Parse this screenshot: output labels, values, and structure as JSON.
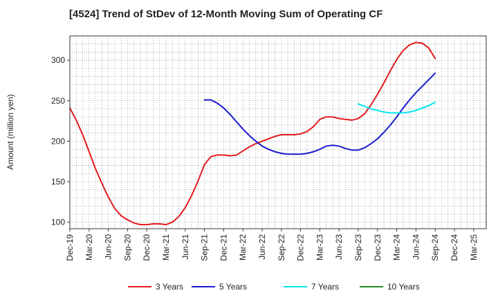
{
  "chart_data": {
    "type": "line",
    "title": "[4524]  Trend of StDev of 12-Month Moving Sum of Operating CF",
    "xlabel": "",
    "ylabel": "Amount (million yen)",
    "ylim": [
      92,
      330
    ],
    "yticks": [
      100,
      150,
      200,
      250,
      300
    ],
    "x_tick_labels": [
      "Dec-19",
      "Mar-20",
      "Jun-20",
      "Sep-20",
      "Dec-20",
      "Mar-21",
      "Jun-21",
      "Sep-21",
      "Dec-21",
      "Mar-22",
      "Jun-22",
      "Sep-22",
      "Dec-22",
      "Mar-23",
      "Jun-23",
      "Sep-23",
      "Dec-23",
      "Mar-24",
      "Jun-24",
      "Sep-24",
      "Dec-24",
      "Mar-25"
    ],
    "grid": true,
    "legend_position": "bottom",
    "series": [
      {
        "name": "3 Years",
        "color": "#e31a1c",
        "x": [
          "2019-12",
          "2020-01",
          "2020-02",
          "2020-03",
          "2020-04",
          "2020-05",
          "2020-06",
          "2020-07",
          "2020-08",
          "2020-09",
          "2020-10",
          "2020-11",
          "2020-12",
          "2021-01",
          "2021-02",
          "2021-03",
          "2021-04",
          "2021-05",
          "2021-06",
          "2021-07",
          "2021-08",
          "2021-09",
          "2021-10",
          "2021-11",
          "2021-12",
          "2022-01",
          "2022-02",
          "2022-03",
          "2022-04",
          "2022-05",
          "2022-06",
          "2022-07",
          "2022-08",
          "2022-09",
          "2022-10",
          "2022-11",
          "2022-12",
          "2023-01",
          "2023-02",
          "2023-03",
          "2023-04",
          "2023-05",
          "2023-06",
          "2023-07",
          "2023-08",
          "2023-09",
          "2023-10",
          "2023-11",
          "2023-12",
          "2024-01",
          "2024-02",
          "2024-03",
          "2024-04",
          "2024-05",
          "2024-06",
          "2024-07",
          "2024-08",
          "2024-09"
        ],
        "values": [
          241,
          226,
          208,
          187,
          166,
          148,
          131,
          117,
          108,
          103,
          99,
          97,
          97,
          98,
          98,
          97,
          100,
          107,
          118,
          133,
          151,
          171,
          181,
          183,
          183,
          182,
          183,
          188,
          193,
          197,
          200,
          203,
          206,
          208,
          208,
          208,
          209,
          212,
          218,
          227,
          230,
          230,
          228,
          227,
          226,
          228,
          234,
          245,
          258,
          272,
          287,
          301,
          312,
          319,
          322,
          321,
          315,
          302
        ]
      },
      {
        "name": "5 Years",
        "color": "#1a1acd",
        "x": [
          "2021-09",
          "2021-10",
          "2021-11",
          "2021-12",
          "2022-01",
          "2022-02",
          "2022-03",
          "2022-04",
          "2022-05",
          "2022-06",
          "2022-07",
          "2022-08",
          "2022-09",
          "2022-10",
          "2022-11",
          "2022-12",
          "2023-01",
          "2023-02",
          "2023-03",
          "2023-04",
          "2023-05",
          "2023-06",
          "2023-07",
          "2023-08",
          "2023-09",
          "2023-10",
          "2023-11",
          "2023-12",
          "2024-01",
          "2024-02",
          "2024-03",
          "2024-04",
          "2024-05",
          "2024-06",
          "2024-07",
          "2024-08",
          "2024-09"
        ],
        "values": [
          251,
          251,
          247,
          241,
          233,
          224,
          215,
          207,
          200,
          194,
          190,
          187,
          185,
          184,
          184,
          184,
          185,
          187,
          190,
          194,
          195,
          194,
          191,
          189,
          189,
          192,
          197,
          203,
          211,
          220,
          230,
          241,
          251,
          260,
          268,
          276,
          284
        ]
      },
      {
        "name": "7 Years",
        "color": "#00e5ee",
        "x": [
          "2023-09",
          "2023-10",
          "2023-11",
          "2023-12",
          "2024-01",
          "2024-02",
          "2024-03",
          "2024-04",
          "2024-05",
          "2024-06",
          "2024-07",
          "2024-08",
          "2024-09"
        ],
        "values": [
          246,
          243,
          240,
          238,
          236,
          235,
          235,
          235,
          236,
          238,
          241,
          244,
          248
        ]
      },
      {
        "name": "10 Years",
        "color": "#228b22",
        "x": [],
        "values": []
      }
    ]
  }
}
